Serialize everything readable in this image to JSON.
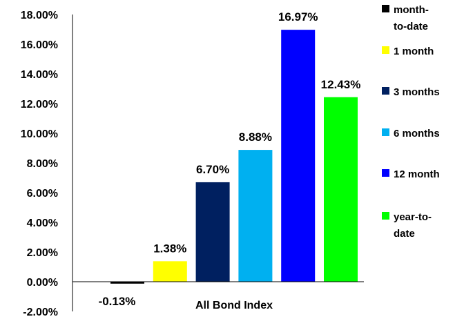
{
  "chart_data": {
    "type": "bar",
    "xlabel": "All Bond Index",
    "categories": [
      "All Bond Index"
    ],
    "ylim": [
      -2,
      18
    ],
    "ytick_step": 2,
    "ytick_labels": [
      "-2.00%",
      "0.00%",
      "2.00%",
      "4.00%",
      "6.00%",
      "8.00%",
      "10.00%",
      "12.00%",
      "14.00%",
      "16.00%",
      "18.00%"
    ],
    "grid": false,
    "legend_position": "right",
    "series": [
      {
        "name": "month-to-date",
        "legend_lines": [
          "month-",
          "to-date"
        ],
        "value": -0.13,
        "label": "-0.13%",
        "color": "#000000"
      },
      {
        "name": "1 month",
        "legend_lines": [
          "1 month"
        ],
        "value": 1.38,
        "label": "1.38%",
        "color": "#FFFF00"
      },
      {
        "name": "3 months",
        "legend_lines": [
          "3 months"
        ],
        "value": 6.7,
        "label": "6.70%",
        "color": "#002060"
      },
      {
        "name": "6 months",
        "legend_lines": [
          "6 months"
        ],
        "value": 8.88,
        "label": "8.88%",
        "color": "#00B0F0"
      },
      {
        "name": "12 month",
        "legend_lines": [
          "12 month"
        ],
        "value": 16.97,
        "label": "16.97%",
        "color": "#0000FF"
      },
      {
        "name": "year-to-date",
        "legend_lines": [
          "year-to-",
          "date"
        ],
        "value": 12.43,
        "label": "12.43%",
        "color": "#00FF00"
      }
    ]
  }
}
